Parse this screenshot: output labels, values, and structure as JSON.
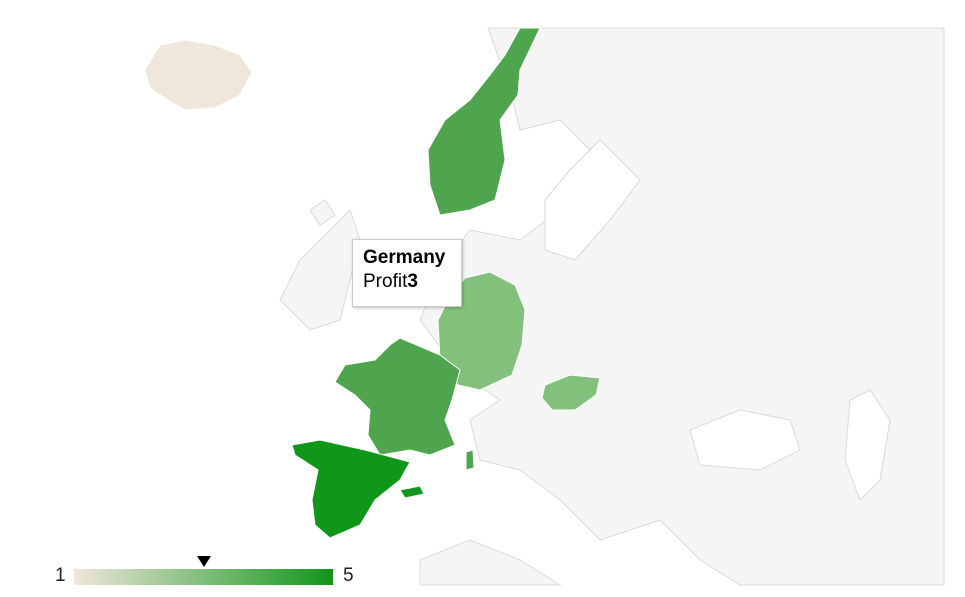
{
  "tooltip": {
    "country": "Germany",
    "metric_label": "Profit",
    "metric_value": "3"
  },
  "legend": {
    "min_label": "1",
    "max_label": "5",
    "min_color": "#efe6dc",
    "max_color": "#109618",
    "marker_value": 3
  },
  "regions": [
    {
      "name": "Iceland",
      "value": 1,
      "color": "#efe6dc"
    },
    {
      "name": "Norway",
      "value": 4,
      "color": "#4ea54e"
    },
    {
      "name": "Germany",
      "value": 3,
      "color": "#82c07c"
    },
    {
      "name": "France",
      "value": 4,
      "color": "#4ea54e"
    },
    {
      "name": "Spain",
      "value": 5,
      "color": "#109618"
    },
    {
      "name": "Hungary",
      "value": 3,
      "color": "#82c07c"
    }
  ]
}
